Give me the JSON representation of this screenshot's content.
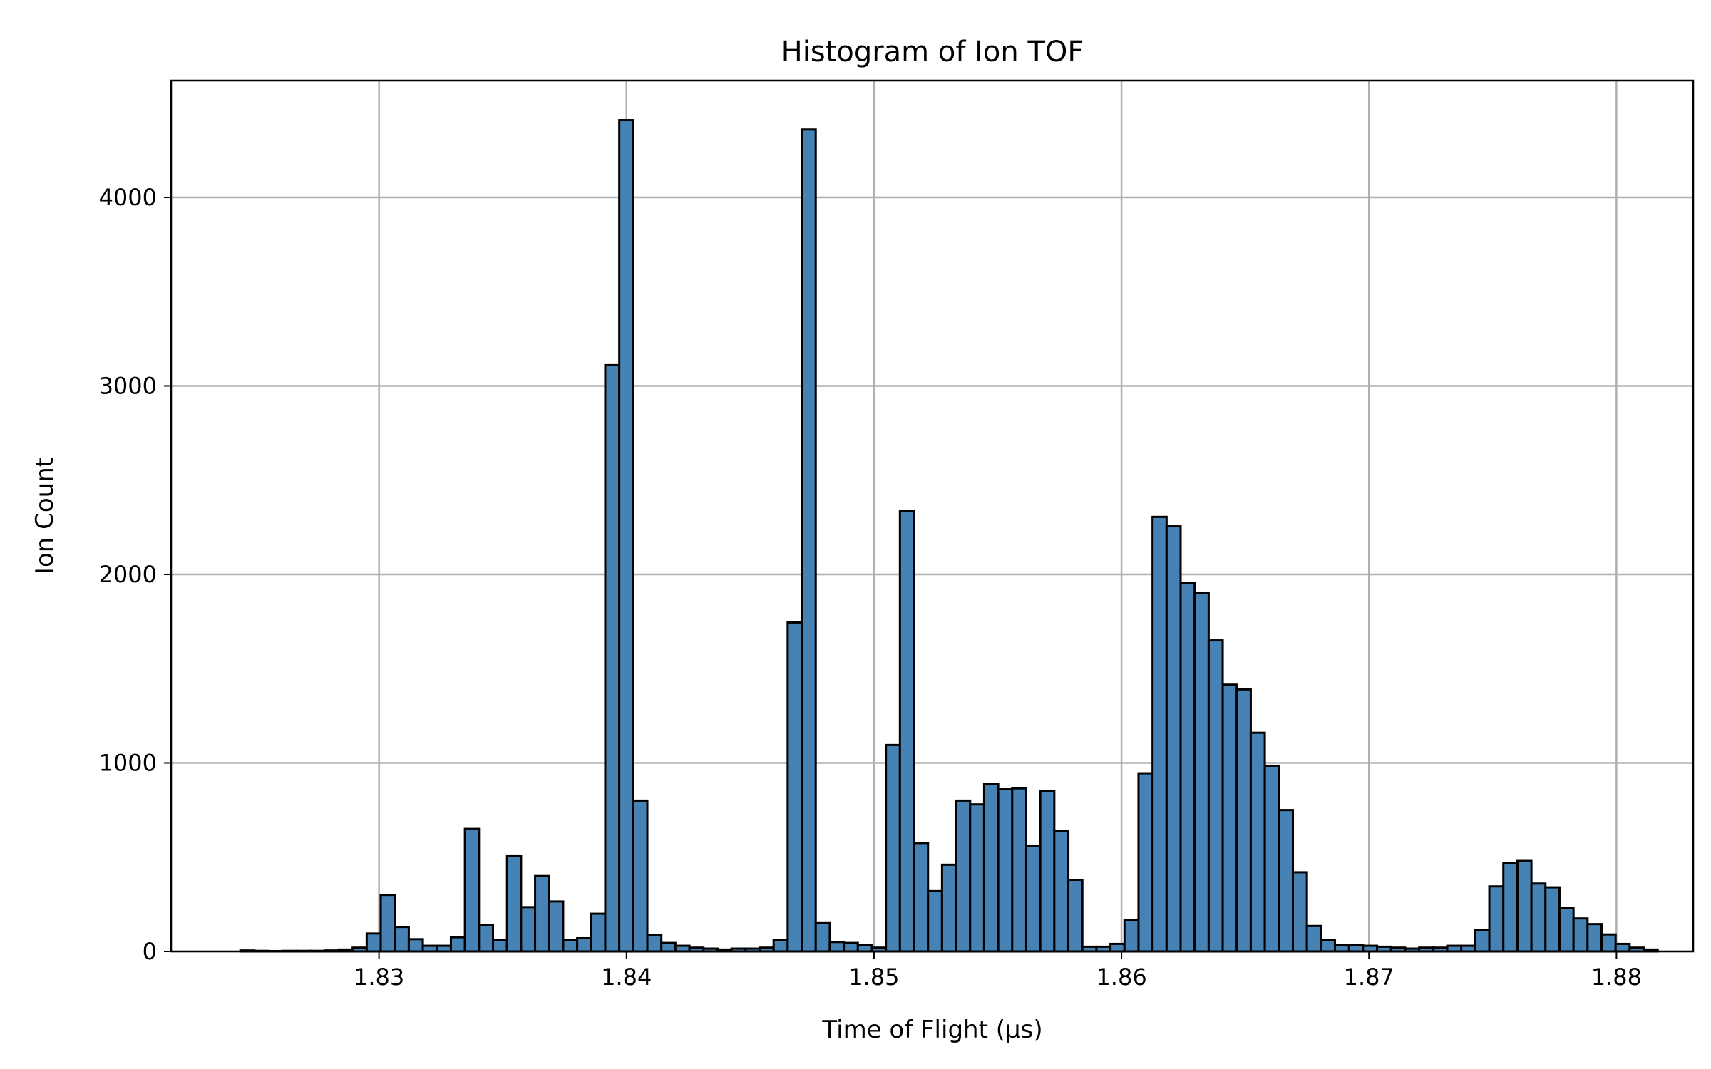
{
  "chart_data": {
    "type": "bar",
    "title": "Histogram of Ion TOF",
    "xlabel": "Time of Flight (µs)",
    "ylabel": "Ion Count",
    "xlim": [
      1.8216,
      1.8831
    ],
    "ylim": [
      0,
      4620
    ],
    "grid": true,
    "bar_color": "#4682b4",
    "edge_color": "#000000",
    "bin_start": 1.8244,
    "bin_width": 0.000567,
    "x_ticks": [
      {
        "value": 1.83,
        "label": "1.83"
      },
      {
        "value": 1.84,
        "label": "1.84"
      },
      {
        "value": 1.85,
        "label": "1.85"
      },
      {
        "value": 1.86,
        "label": "1.86"
      },
      {
        "value": 1.87,
        "label": "1.87"
      },
      {
        "value": 1.88,
        "label": "1.88"
      }
    ],
    "y_ticks": [
      {
        "value": 0,
        "label": "0"
      },
      {
        "value": 1000,
        "label": "1000"
      },
      {
        "value": 2000,
        "label": "2000"
      },
      {
        "value": 3000,
        "label": "3000"
      },
      {
        "value": 4000,
        "label": "4000"
      }
    ],
    "counts": [
      5,
      3,
      2,
      3,
      3,
      3,
      5,
      10,
      20,
      95,
      300,
      130,
      65,
      30,
      30,
      75,
      650,
      140,
      60,
      505,
      235,
      400,
      265,
      60,
      70,
      200,
      3110,
      4410,
      800,
      85,
      45,
      30,
      20,
      15,
      10,
      15,
      15,
      20,
      60,
      1745,
      4360,
      150,
      50,
      45,
      35,
      20,
      1095,
      2335,
      575,
      320,
      460,
      800,
      780,
      890,
      860,
      865,
      560,
      850,
      640,
      380,
      25,
      25,
      40,
      165,
      945,
      2305,
      2255,
      1955,
      1900,
      1650,
      1415,
      1390,
      1160,
      985,
      750,
      420,
      135,
      60,
      35,
      35,
      30,
      25,
      20,
      15,
      20,
      20,
      30,
      30,
      115,
      345,
      470,
      480,
      360,
      340,
      230,
      175,
      145,
      90,
      40,
      20,
      10
    ]
  }
}
